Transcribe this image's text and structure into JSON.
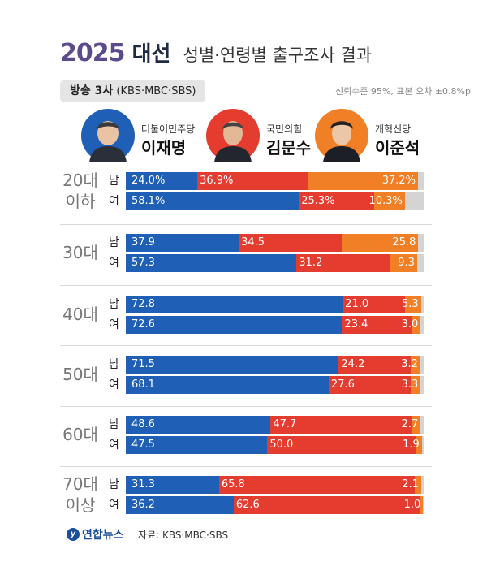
{
  "header": {
    "year": "2025",
    "main": "대선",
    "subtitle": "성별·연령별 출구조사 결과",
    "source_box": {
      "bold": "방송 3사",
      "normal": "(KBS·MBC·SBS)"
    },
    "confidence": "신뢰수준 95%, 표본 오차 ±0.8%p"
  },
  "candidates": [
    {
      "party": "더불어민주당",
      "name": "이재명",
      "color": "#1f5fb5",
      "avatar_icon": "candidate-photo"
    },
    {
      "party": "국민의힘",
      "name": "김문수",
      "color": "#e43d2f",
      "avatar_icon": "candidate-photo"
    },
    {
      "party": "개혁신당",
      "name": "이준석",
      "color": "#f07f25",
      "avatar_icon": "candidate-photo"
    }
  ],
  "chart_data": {
    "type": "bar",
    "stacked": true,
    "orientation": "horizontal",
    "title": "2025 대선 성별·연령별 출구조사 결과",
    "series_names": [
      "이재명",
      "김문수",
      "이준석"
    ],
    "colors": [
      "#1f5fb5",
      "#e43d2f",
      "#f07f25"
    ],
    "xlim": [
      0,
      100
    ],
    "groups": [
      {
        "age_lines": [
          "20대",
          "이하"
        ],
        "rows": [
          {
            "sex": "남",
            "values": [
              24.0,
              36.9,
              37.2
            ],
            "labels": [
              "24.0%",
              "36.9%",
              "37.2%"
            ]
          },
          {
            "sex": "여",
            "values": [
              58.1,
              25.3,
              10.3
            ],
            "labels": [
              "58.1%",
              "25.3%",
              "10.3%"
            ]
          }
        ]
      },
      {
        "age_lines": [
          "30대"
        ],
        "rows": [
          {
            "sex": "남",
            "values": [
              37.9,
              34.5,
              25.8
            ],
            "labels": [
              "37.9",
              "34.5",
              "25.8"
            ]
          },
          {
            "sex": "여",
            "values": [
              57.3,
              31.2,
              9.3
            ],
            "labels": [
              "57.3",
              "31.2",
              "9.3"
            ]
          }
        ]
      },
      {
        "age_lines": [
          "40대"
        ],
        "rows": [
          {
            "sex": "남",
            "values": [
              72.8,
              21.0,
              5.3
            ],
            "labels": [
              "72.8",
              "21.0",
              "5.3"
            ]
          },
          {
            "sex": "여",
            "values": [
              72.6,
              23.4,
              3.0
            ],
            "labels": [
              "72.6",
              "23.4",
              "3.0"
            ]
          }
        ]
      },
      {
        "age_lines": [
          "50대"
        ],
        "rows": [
          {
            "sex": "남",
            "values": [
              71.5,
              24.2,
              3.2
            ],
            "labels": [
              "71.5",
              "24.2",
              "3.2"
            ]
          },
          {
            "sex": "여",
            "values": [
              68.1,
              27.6,
              3.3
            ],
            "labels": [
              "68.1",
              "27.6",
              "3.3"
            ]
          }
        ]
      },
      {
        "age_lines": [
          "60대"
        ],
        "rows": [
          {
            "sex": "남",
            "values": [
              48.6,
              47.7,
              2.7
            ],
            "labels": [
              "48.6",
              "47.7",
              "2.7"
            ]
          },
          {
            "sex": "여",
            "values": [
              47.5,
              50.0,
              1.9
            ],
            "labels": [
              "47.5",
              "50.0",
              "1.9"
            ]
          }
        ]
      },
      {
        "age_lines": [
          "70대",
          "이상"
        ],
        "rows": [
          {
            "sex": "남",
            "values": [
              31.3,
              65.8,
              2.1
            ],
            "labels": [
              "31.3",
              "65.8",
              "2.1"
            ]
          },
          {
            "sex": "여",
            "values": [
              36.2,
              62.6,
              1.0
            ],
            "labels": [
              "36.2",
              "62.6",
              "1.0"
            ]
          }
        ]
      }
    ]
  },
  "footer": {
    "logo_text": "연합뉴스",
    "source": "자료: KBS·MBC·SBS"
  }
}
